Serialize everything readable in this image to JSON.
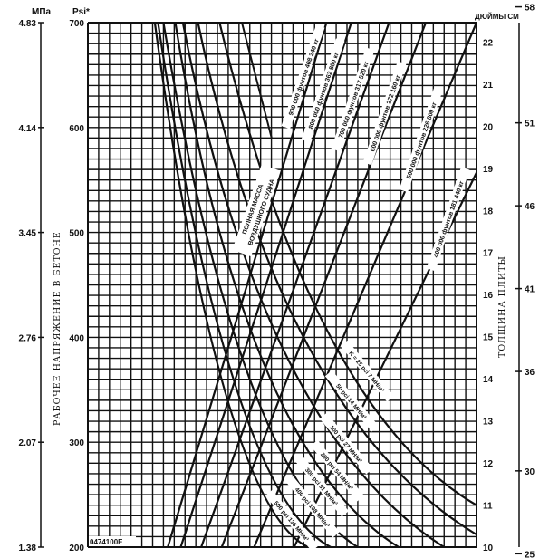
{
  "chart_data": {
    "type": "line",
    "title": "",
    "headers": {
      "mpa": "МПа",
      "psi": "Psi*",
      "right": "ДЮЙМЫ  СМ"
    },
    "ylabel_left": "РАБОЧЕЕ НАПРЯЖЕНИЕ В БЕТОНЕ",
    "ylabel_right": "ТОЛЩИНА ПЛИТЫ",
    "figure_code": "0474100E",
    "group_label": [
      "ПОЛНАЯ МАССА",
      "ВОЗДУШНОГО СУДНА"
    ],
    "psi_axis": {
      "range": [
        200,
        700
      ],
      "ticks": [
        "200",
        "300",
        "400",
        "500",
        "600",
        "700"
      ],
      "grid_step": 10
    },
    "mpa_axis": {
      "ticks": [
        "1.38",
        "2.07",
        "2.76",
        "3.45",
        "4.14",
        "4.83"
      ]
    },
    "inch_axis": {
      "range": [
        10,
        22
      ],
      "ticks": [
        "10",
        "11",
        "12",
        "13",
        "14",
        "15",
        "16",
        "17",
        "18",
        "19",
        "20",
        "21",
        "22"
      ]
    },
    "cm_axis": {
      "values": [
        25,
        30,
        36,
        41,
        46,
        51,
        58
      ],
      "ticks": [
        "25",
        "30",
        "36",
        "41",
        "46",
        "51",
        "58"
      ]
    },
    "grid_columns": 36,
    "mass_lines": [
      {
        "label": "900 000 фунтов   408 240 кг",
        "points": [
          [
            7.4,
            200
          ],
          [
            22.1,
            700
          ]
        ]
      },
      {
        "label": "800 000 фунтов   362 880 кг",
        "points": [
          [
            8.6,
            200
          ],
          [
            24.4,
            700
          ]
        ]
      },
      {
        "label": "700 000 фунтов   317 520 кг",
        "points": [
          [
            10.5,
            200
          ],
          [
            27.9,
            700
          ]
        ]
      },
      {
        "label": "600 000 фунтов   272 160 кг",
        "points": [
          [
            12.4,
            200
          ],
          [
            31.3,
            700
          ]
        ]
      },
      {
        "label": "500 000 фунтов   226 800 кг",
        "points": [
          [
            15.4,
            200
          ],
          [
            36.0,
            700
          ]
        ]
      },
      {
        "label": "400 000 фунтов   181 440 кг",
        "points": [
          [
            19.1,
            200
          ],
          [
            36.0,
            557
          ]
        ]
      }
    ],
    "k_curves": [
      {
        "label": "K = 25 pci  7 МН/м³",
        "points": [
          [
            12.2,
            700
          ],
          [
            22.5,
            400
          ],
          [
            36.0,
            240
          ]
        ]
      },
      {
        "label": "50 pci  14 МН/м³",
        "points": [
          [
            10.2,
            700
          ],
          [
            20.5,
            390
          ],
          [
            36.0,
            212
          ]
        ]
      },
      {
        "label": "100 pci  27 МН/м³",
        "points": [
          [
            8.8,
            700
          ],
          [
            18.5,
            380
          ],
          [
            33.0,
            200
          ]
        ]
      },
      {
        "label": "200 pci  54 МН/м³",
        "points": [
          [
            8.1,
            700
          ],
          [
            16.5,
            370
          ],
          [
            28.8,
            200
          ]
        ]
      },
      {
        "label": "300 pci  81 МН/м³",
        "points": [
          [
            7.0,
            700
          ],
          [
            15.0,
            360
          ],
          [
            25.0,
            200
          ]
        ]
      },
      {
        "label": "400 pci  108 МН/м³",
        "points": [
          [
            6.5,
            700
          ],
          [
            13.8,
            350
          ],
          [
            22.5,
            200
          ]
        ]
      },
      {
        "label": "500 pci  136 МН/м³",
        "points": [
          [
            6.2,
            700
          ],
          [
            12.8,
            345
          ],
          [
            20.4,
            200
          ]
        ]
      }
    ]
  }
}
